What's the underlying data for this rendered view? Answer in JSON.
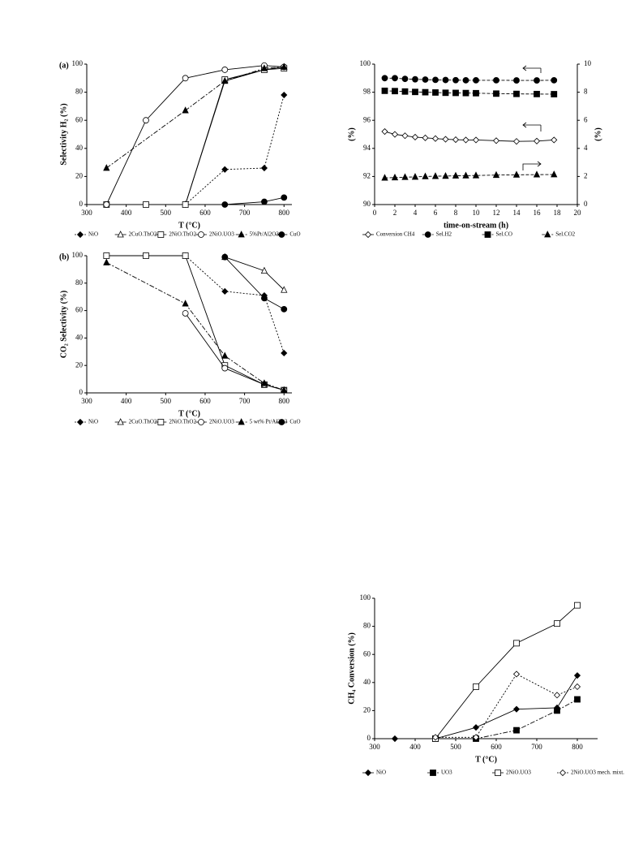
{
  "chart_data": [
    {
      "type": "line",
      "panel_label": "(a)",
      "y_label": "Selectivity H₂ (%)",
      "x_label": "T (°C)",
      "xlim": [
        300,
        820
      ],
      "xticks": [
        300,
        400,
        500,
        600,
        700,
        800
      ],
      "ylim": [
        0,
        100
      ],
      "yticks": [
        0,
        20,
        40,
        60,
        80,
        100
      ],
      "series": [
        {
          "name": "NiO",
          "color": "#000000",
          "marker": "diamond",
          "filled": true,
          "dash": "dotted",
          "x": [
            550,
            650,
            750,
            800
          ],
          "values": [
            0,
            25,
            26,
            78
          ]
        },
        {
          "name": "2CuO.ThO2",
          "color": "#000000",
          "marker": "triangle",
          "filled": false,
          "dash": "solid",
          "x": [
            550,
            650,
            750,
            800
          ],
          "values": [
            0,
            88,
            96,
            98
          ]
        },
        {
          "name": "2NiO.ThO2",
          "color": "#000000",
          "marker": "square",
          "filled": false,
          "dash": "solid",
          "x": [
            350,
            450,
            550,
            650,
            750,
            800
          ],
          "values": [
            0,
            0,
            0,
            89,
            96,
            97
          ]
        },
        {
          "name": "2NiO.UO3",
          "color": "#000000",
          "marker": "circle",
          "filled": false,
          "dash": "solid",
          "x": [
            350,
            450,
            550,
            650,
            750,
            800
          ],
          "values": [
            0,
            60,
            90,
            96,
            99,
            98
          ]
        },
        {
          "name": "5%Pt/Al2O3",
          "color": "#000000",
          "marker": "triangle",
          "filled": true,
          "dash": "dashdot",
          "x": [
            350,
            550,
            650,
            750,
            800
          ],
          "values": [
            26,
            67,
            88,
            97,
            98
          ]
        },
        {
          "name": "CuO",
          "color": "#000000",
          "marker": "circle",
          "filled": true,
          "dash": "solid",
          "x": [
            650,
            750,
            800
          ],
          "values": [
            0,
            2,
            5
          ]
        }
      ]
    },
    {
      "type": "line",
      "panel_label": "(b)",
      "y_label": "CO₂ Selectivity (%)",
      "x_label": "T (°C)",
      "xlim": [
        300,
        820
      ],
      "xticks": [
        300,
        400,
        500,
        600,
        700,
        800
      ],
      "ylim": [
        0,
        100
      ],
      "yticks": [
        0,
        20,
        40,
        60,
        80,
        100
      ],
      "series": [
        {
          "name": "NiO",
          "color": "#000000",
          "marker": "diamond",
          "filled": true,
          "dash": "dotted",
          "x": [
            550,
            650,
            750,
            800
          ],
          "values": [
            100,
            74,
            71,
            29
          ]
        },
        {
          "name": "2CuO.ThO2",
          "color": "#000000",
          "marker": "triangle",
          "filled": false,
          "dash": "solid",
          "x": [
            650,
            750,
            800
          ],
          "values": [
            99,
            89,
            75
          ]
        },
        {
          "name": "2NiO.ThO2",
          "color": "#000000",
          "marker": "square",
          "filled": false,
          "dash": "solid",
          "x": [
            350,
            450,
            550,
            650,
            750,
            800
          ],
          "values": [
            100,
            100,
            100,
            20,
            6,
            2
          ]
        },
        {
          "name": "2NiO.UO3",
          "color": "#000000",
          "marker": "circle",
          "filled": false,
          "dash": "solid",
          "x": [
            550,
            650,
            750,
            800
          ],
          "values": [
            58,
            18,
            6,
            2
          ]
        },
        {
          "name": "5 wt% Pt/Al2O3",
          "color": "#000000",
          "marker": "triangle",
          "filled": true,
          "dash": "dashdot",
          "x": [
            350,
            550,
            650,
            750,
            800
          ],
          "values": [
            95,
            65,
            27,
            7,
            2
          ]
        },
        {
          "name": "CuO",
          "color": "#000000",
          "marker": "circle",
          "filled": true,
          "dash": "solid",
          "x": [
            650,
            750,
            800
          ],
          "values": [
            99,
            69,
            61
          ]
        }
      ]
    },
    {
      "type": "line",
      "y_label": "(%)",
      "y2_label": "(%)",
      "x_label": "time-on-stream (h)",
      "xlim": [
        0,
        20
      ],
      "xticks": [
        0,
        2,
        4,
        6,
        8,
        10,
        12,
        14,
        16,
        18,
        20
      ],
      "ylim": [
        90,
        100
      ],
      "yticks": [
        90,
        92,
        94,
        96,
        98,
        100
      ],
      "y2lim": [
        0,
        10
      ],
      "y2ticks": [
        0,
        2,
        4,
        6,
        8,
        10
      ],
      "series": [
        {
          "name": "Conversion CH4",
          "color": "#000000",
          "marker": "diamond",
          "filled": false,
          "dash": "solid",
          "x": [
            1,
            2,
            3,
            4,
            5,
            6,
            7,
            8,
            9,
            10,
            12,
            14,
            16,
            17.7
          ],
          "values": [
            95.2,
            95.0,
            94.9,
            94.8,
            94.75,
            94.7,
            94.65,
            94.62,
            94.6,
            94.6,
            94.55,
            94.5,
            94.52,
            94.6
          ]
        },
        {
          "name": "Sel.H2",
          "color": "#000000",
          "marker": "circle",
          "filled": true,
          "dash": "dashed",
          "x": [
            1,
            2,
            3,
            4,
            5,
            6,
            7,
            8,
            9,
            10,
            12,
            14,
            16,
            17.7
          ],
          "values": [
            99.0,
            99.0,
            98.95,
            98.92,
            98.9,
            98.88,
            98.87,
            98.86,
            98.85,
            98.85,
            98.85,
            98.84,
            98.84,
            98.85
          ]
        },
        {
          "name": "Sel.CO",
          "color": "#000000",
          "marker": "square",
          "filled": true,
          "dash": "dashed",
          "axis": "y2",
          "x": [
            1,
            2,
            3,
            4,
            5,
            6,
            7,
            8,
            9,
            10,
            12,
            14,
            16,
            17.7
          ],
          "values": [
            8.1,
            8.08,
            8.05,
            8.02,
            8.0,
            7.98,
            7.96,
            7.95,
            7.94,
            7.93,
            7.9,
            7.88,
            7.87,
            7.86
          ]
        },
        {
          "name": "Sel.CO2",
          "color": "#000000",
          "marker": "triangle",
          "filled": true,
          "dash": "dashed",
          "axis": "y2",
          "x": [
            1,
            2,
            3,
            4,
            5,
            6,
            7,
            8,
            9,
            10,
            12,
            14,
            16,
            17.7
          ],
          "values": [
            1.9,
            1.92,
            1.95,
            1.97,
            2.0,
            2.02,
            2.03,
            2.05,
            2.06,
            2.07,
            2.1,
            2.12,
            2.13,
            2.14
          ]
        }
      ]
    },
    {
      "type": "line",
      "y_label": "CH₄ Conversion (%)",
      "x_label": "T (°C)",
      "xlim": [
        300,
        850
      ],
      "xticks": [
        300,
        400,
        500,
        600,
        700,
        800
      ],
      "ylim": [
        0,
        100
      ],
      "yticks": [
        0,
        20,
        40,
        60,
        80,
        100
      ],
      "series": [
        {
          "name": "NiO",
          "color": "#000000",
          "marker": "diamond",
          "filled": true,
          "dash": "solid",
          "x": [
            350,
            450,
            550,
            650,
            750,
            800
          ],
          "values": [
            0,
            0,
            8,
            21,
            22,
            45
          ]
        },
        {
          "name": "UO3",
          "color": "#000000",
          "marker": "square",
          "filled": true,
          "dash": "dashdot",
          "x": [
            450,
            550,
            650,
            750,
            800
          ],
          "values": [
            0,
            0,
            6,
            20,
            28
          ]
        },
        {
          "name": "2NiO.UO3",
          "color": "#000000",
          "marker": "square",
          "filled": false,
          "dash": "solid",
          "x": [
            450,
            550,
            650,
            750,
            800
          ],
          "values": [
            0,
            37,
            68,
            82,
            95
          ]
        },
        {
          "name": "2NiO.UO3 mech. mixt.",
          "color": "#000000",
          "marker": "diamond",
          "filled": false,
          "dash": "dotted",
          "x": [
            450,
            550,
            650,
            750,
            800
          ],
          "values": [
            1,
            1,
            46,
            31,
            37
          ]
        }
      ]
    }
  ]
}
